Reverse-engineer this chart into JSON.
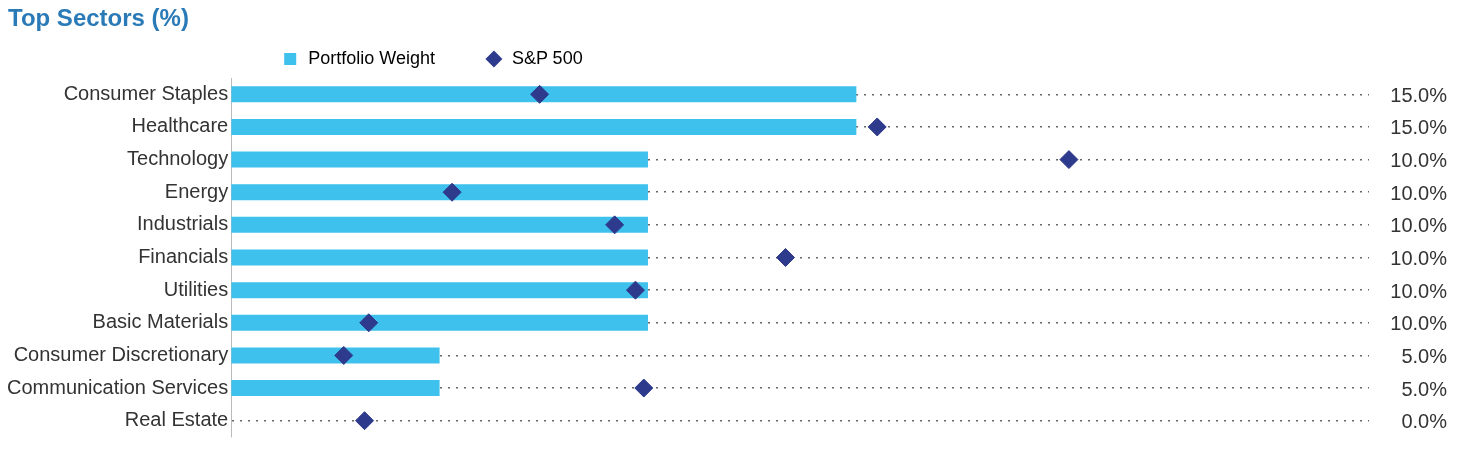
{
  "chart_data": {
    "type": "bar",
    "orientation": "horizontal",
    "title": "Top Sectors (%)",
    "categories": [
      "Consumer Staples",
      "Healthcare",
      "Technology",
      "Energy",
      "Industrials",
      "Financials",
      "Utilities",
      "Basic Materials",
      "Consumer Discretionary",
      "Communication Services",
      "Real Estate"
    ],
    "series": [
      {
        "name": "Portfolio Weight",
        "color": "#3ec1ec",
        "values": [
          15,
          15,
          10,
          10,
          10,
          10,
          10,
          10,
          5,
          5,
          0
        ],
        "value_labels": [
          "15.0%",
          "15.0%",
          "10.0%",
          "10.0%",
          "10.0%",
          "10.0%",
          "10.0%",
          "10.0%",
          "5.0%",
          "5.0%",
          "0.0%"
        ]
      },
      {
        "name": "S&P 500",
        "type": "scatter",
        "marker": "diamond",
        "color": "#2e3a8c",
        "values": [
          7.4,
          15.5,
          20.1,
          5.3,
          9.2,
          13.3,
          9.7,
          3.3,
          2.7,
          9.9,
          3.2
        ]
      }
    ],
    "xlim": [
      0,
      27.3
    ],
    "grid": "y",
    "line_style": "dotted",
    "legend": "top",
    "tick_labels": "y"
  }
}
